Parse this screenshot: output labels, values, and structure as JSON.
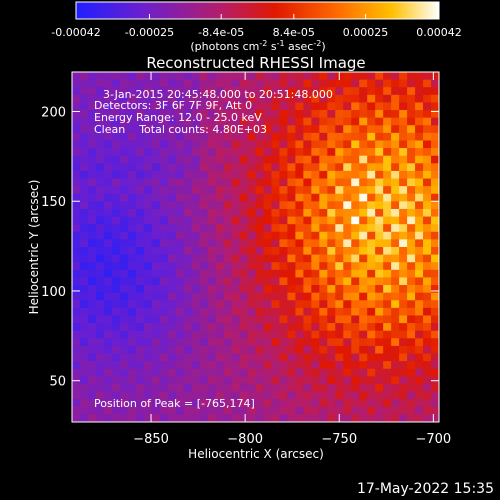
{
  "colorbar": {
    "tick_labels": [
      "-0.00042",
      "-0.00025",
      "-8.4e-05",
      "8.4e-05",
      "0.00025",
      "0.00042"
    ],
    "tick_values": [
      -0.00042,
      -0.00025,
      -8.4e-05,
      8.4e-05,
      0.00025,
      0.00042
    ],
    "range": [
      -0.00042,
      0.00042
    ],
    "unit_label_parts": [
      "(photons cm",
      "-2",
      " s",
      "-1",
      " asec",
      "-2",
      ")"
    ],
    "colors": [
      "#1f1fff",
      "#6a1fd0",
      "#b51d6a",
      "#e01800",
      "#ff6a00",
      "#ffc000",
      "#ffffff"
    ]
  },
  "chart_data": {
    "type": "heatmap",
    "title": "Reconstructed RHESSI Image",
    "xlabel": "Heliocentric X (arcsec)",
    "ylabel": "Heliocentric Y (arcsec)",
    "xlim": [
      -892,
      -697
    ],
    "ylim": [
      27,
      222
    ],
    "x_ticks": [
      -850,
      -800,
      -750,
      -700
    ],
    "x_tick_labels": [
      "−850",
      "−800",
      "−750",
      "−700"
    ],
    "y_ticks": [
      50,
      100,
      150,
      200
    ],
    "y_tick_labels": [
      "50",
      "100",
      "150",
      "200"
    ],
    "peak": {
      "x": -765,
      "y": 174
    },
    "annotations": [
      "3-Jan-2015 20:45:48.000 to 20:51:48.000",
      "Detectors: 3F 6F 7F 9F, Att 0",
      "Energy Range: 12.0 - 25.0 keV",
      "Clean    Total counts: 4.80E+03"
    ],
    "peak_label": "Position of Peak = [-765,174]"
  },
  "timestamp": "17-May-2022 15:35"
}
